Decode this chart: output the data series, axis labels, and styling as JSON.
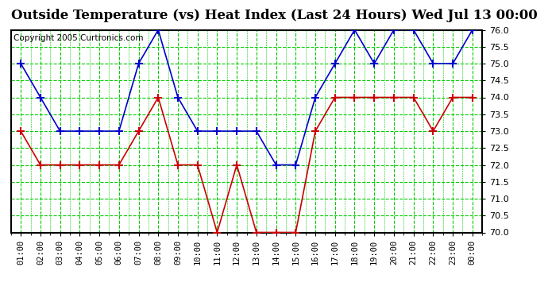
{
  "title": "Outside Temperature (vs) Heat Index (Last 24 Hours) Wed Jul 13 00:00",
  "copyright": "Copyright 2005 Curtronics.com",
  "x_labels": [
    "01:00",
    "02:00",
    "03:00",
    "04:00",
    "05:00",
    "06:00",
    "07:00",
    "08:00",
    "09:00",
    "10:00",
    "11:00",
    "12:00",
    "13:00",
    "14:00",
    "15:00",
    "16:00",
    "17:00",
    "18:00",
    "19:00",
    "20:00",
    "21:00",
    "22:00",
    "23:00",
    "00:00"
  ],
  "blue_values": [
    75.0,
    74.0,
    73.0,
    73.0,
    73.0,
    73.0,
    75.0,
    76.0,
    74.0,
    73.0,
    73.0,
    73.0,
    73.0,
    72.0,
    72.0,
    74.0,
    75.0,
    76.0,
    75.0,
    76.0,
    76.0,
    75.0,
    75.0,
    76.0
  ],
  "red_values": [
    73.0,
    72.0,
    72.0,
    72.0,
    72.0,
    72.0,
    73.0,
    74.0,
    72.0,
    72.0,
    70.0,
    72.0,
    70.0,
    70.0,
    70.0,
    73.0,
    74.0,
    74.0,
    74.0,
    74.0,
    74.0,
    73.0,
    74.0,
    74.0
  ],
  "ylim": [
    70.0,
    76.0
  ],
  "ytick_step": 0.5,
  "blue_color": "#0000cc",
  "red_color": "#cc0000",
  "grid_color": "#00cc00",
  "bg_color": "#ffffff",
  "title_fontsize": 12,
  "copyright_fontsize": 7.5
}
